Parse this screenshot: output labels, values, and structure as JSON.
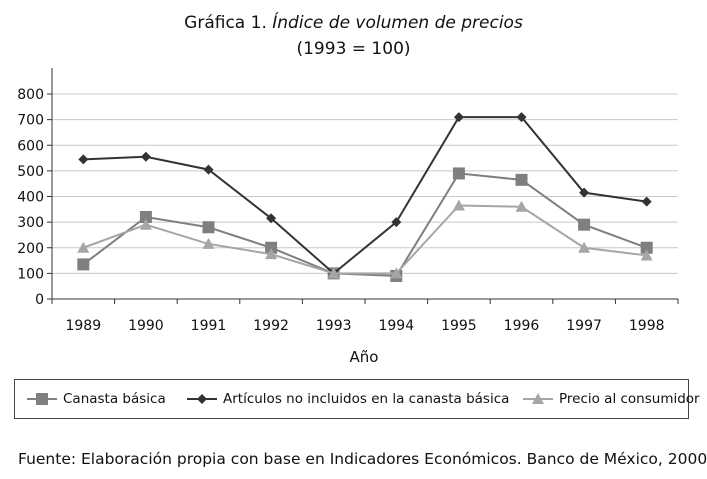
{
  "title": {
    "prefix": "Gráfica 1.",
    "italic": "Índice de volumen de precios",
    "subtitle": "(1993 = 100)"
  },
  "source": "Fuente: Elaboración propia con base en Indicadores Económicos. Banco de México, 2000.",
  "colors": {
    "canasta": "#7f7f7f",
    "articulos": "#333333",
    "precio": "#a6a6a6",
    "grid": "#c8c8c8",
    "axis": "#333333"
  },
  "chart_data": {
    "type": "line",
    "xlabel": "Año",
    "ylabel": "",
    "ylim": [
      0,
      800
    ],
    "yticks": [
      "0",
      "100",
      "200",
      "300",
      "400",
      "500",
      "600",
      "700",
      "800"
    ],
    "grid": true,
    "legend_position": "bottom",
    "categories": [
      "1989",
      "1990",
      "1991",
      "1992",
      "1993",
      "1994",
      "1995",
      "1996",
      "1997",
      "1998"
    ],
    "series": [
      {
        "name": "Canasta básica",
        "marker": "square",
        "values": [
          135,
          320,
          280,
          200,
          100,
          90,
          490,
          465,
          290,
          200
        ]
      },
      {
        "name": "Artículos no incluidos en la canasta básica",
        "marker": "diamond",
        "values": [
          545,
          555,
          505,
          315,
          100,
          300,
          710,
          710,
          415,
          380
        ]
      },
      {
        "name": "Precio al consumidor",
        "marker": "triangle",
        "values": [
          200,
          290,
          215,
          175,
          100,
          100,
          365,
          360,
          200,
          170
        ]
      }
    ]
  }
}
